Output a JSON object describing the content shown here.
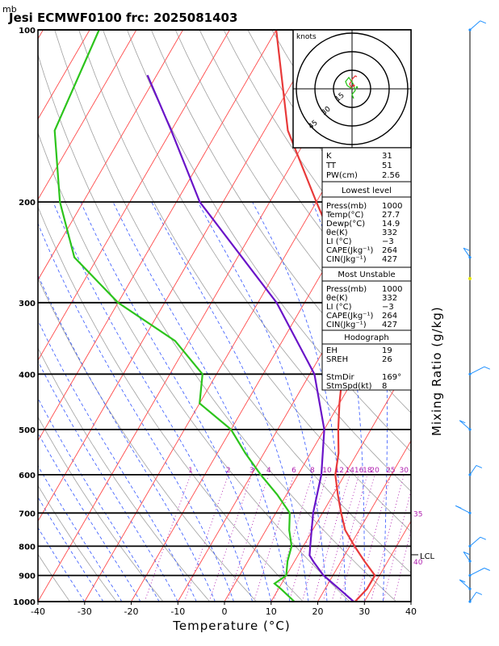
{
  "title": "Jesi ECMWF0100 frc: 2025081403",
  "unit_mb": "mb",
  "xlabel": "Temperature (°C)",
  "ylabel_right": "Mixing Ratio (g/kg)",
  "knots_label": "knots",
  "lcl_label": "LCL",
  "colors": {
    "temperature": "#e83a3a",
    "dewpoint": "#2cc41c",
    "parcel": "#6a14c8",
    "isotherm": "#ff4a4a",
    "dry_adiabat": "#a0a0a0",
    "moist_adiabat": "#3355ff",
    "mixing_ratio": "#b020b0"
  },
  "chart_data": {
    "type": "line",
    "xlabel": "Temperature (°C)",
    "ylabel": "Pressure (mb)",
    "xlim": [
      -40,
      40
    ],
    "ylim": [
      1000,
      100
    ],
    "y_scale": "log",
    "x_ticks": [
      "-40",
      "-30",
      "-20",
      "-10",
      "0",
      "10",
      "20",
      "30",
      "40"
    ],
    "y_ticks": [
      "100",
      "200",
      "300",
      "400",
      "500",
      "600",
      "700",
      "800",
      "900",
      "1000"
    ],
    "mixing_ratio_labels": [
      "1",
      "2",
      "3",
      "4",
      "6",
      "8",
      "10",
      "12",
      "14",
      "16",
      "18",
      "20",
      "25",
      "30",
      "35",
      "40"
    ],
    "series": [
      {
        "key": "temperature",
        "pressure": [
          1000,
          950,
          900,
          850,
          800,
          750,
          700,
          650,
          600,
          550,
          500,
          450,
          400,
          350,
          300,
          250,
          200,
          150,
          100
        ],
        "temp": [
          28,
          29,
          29,
          25,
          21,
          17,
          14,
          11,
          8,
          6,
          3,
          0,
          -3,
          -6,
          -10,
          -18,
          -30,
          -45,
          -60
        ]
      },
      {
        "key": "dewpoint",
        "pressure": [
          1000,
          950,
          930,
          900,
          850,
          800,
          750,
          700,
          650,
          600,
          550,
          500,
          450,
          400,
          350,
          300,
          250,
          200,
          150,
          100
        ],
        "temp": [
          15,
          10.5,
          8.5,
          10,
          8.5,
          7.5,
          5,
          3,
          -2,
          -8,
          -14,
          -20,
          -30,
          -33,
          -43,
          -60,
          -75,
          -85,
          -95,
          -98
        ]
      },
      {
        "key": "parcel",
        "pressure": [
          1000,
          950,
          900,
          850,
          830,
          800,
          700,
          600,
          500,
          400,
          300,
          200,
          150,
          120
        ],
        "temp": [
          27.7,
          23,
          18,
          14,
          12.5,
          11.5,
          8,
          5,
          0,
          -9,
          -26,
          -55,
          -70,
          -82
        ]
      }
    ],
    "hodograph_rings_kt": [
      "15",
      "30",
      "45"
    ],
    "wind_profile_pressure": [
      1000,
      950,
      900,
      850,
      800,
      700,
      600,
      500,
      400,
      250,
      100
    ],
    "indices": {
      "K": "31",
      "TT": "51",
      "PW(cm)": "2.56"
    },
    "lowest_level": {
      "heading": "Lowest level",
      "rows": [
        [
          "Press(mb)",
          "1000"
        ],
        [
          "Temp(°C)",
          "27.7"
        ],
        [
          "Dewp(°C)",
          "14.9"
        ],
        [
          "θe(K)",
          "332"
        ],
        [
          "LI (°C)",
          "−3"
        ],
        [
          "CAPE(Jkg⁻¹)",
          "264"
        ],
        [
          "CIN(Jkg⁻¹)",
          "427"
        ]
      ]
    },
    "most_unstable": {
      "heading": "Most Unstable",
      "rows": [
        [
          "Press(mb)",
          "1000"
        ],
        [
          "θe(K)",
          "332"
        ],
        [
          "LI (°C)",
          "−3"
        ],
        [
          "CAPE(Jkg⁻¹)",
          "264"
        ],
        [
          "CIN(Jkg⁻¹)",
          "427"
        ]
      ]
    },
    "hodograph": {
      "heading": "Hodograph",
      "rows": [
        [
          "EH",
          "19"
        ],
        [
          "SREH",
          "26"
        ],
        [
          "",
          ""
        ],
        [
          "StmDir",
          "169°"
        ],
        [
          "StmSpd(kt)",
          "8"
        ]
      ]
    }
  }
}
